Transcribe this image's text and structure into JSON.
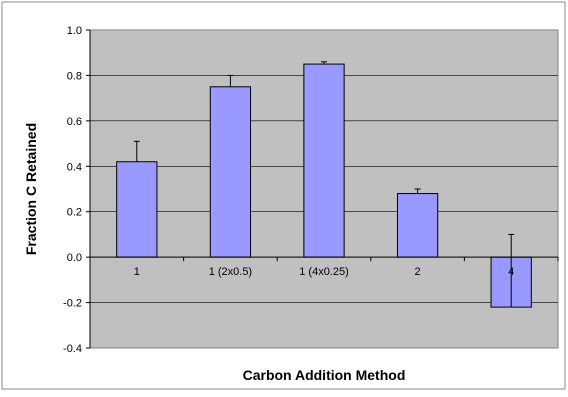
{
  "chart_data": {
    "type": "bar",
    "title": "",
    "xlabel": "Carbon Addition Method",
    "ylabel": "Fraction C Retained",
    "categories": [
      "1",
      "1 (2x0.5)",
      "1 (4x0.25)",
      "2",
      "4"
    ],
    "values": [
      0.42,
      0.75,
      0.85,
      0.28,
      -0.22
    ],
    "error_upper": [
      0.09,
      0.05,
      0.01,
      0.02,
      0.32
    ],
    "ylim": [
      -0.4,
      1.0
    ],
    "yticks": [
      "-0.4",
      "-0.2",
      "0.0",
      "0.2",
      "0.4",
      "0.6",
      "0.8",
      "1.0"
    ],
    "grid": true,
    "legend": "none",
    "colors": {
      "bar_fill": "#9999ff",
      "bar_stroke": "#000000",
      "plot_background": "#c0c0c0",
      "gridline": "#000000",
      "page_background": "#ffffff"
    }
  }
}
